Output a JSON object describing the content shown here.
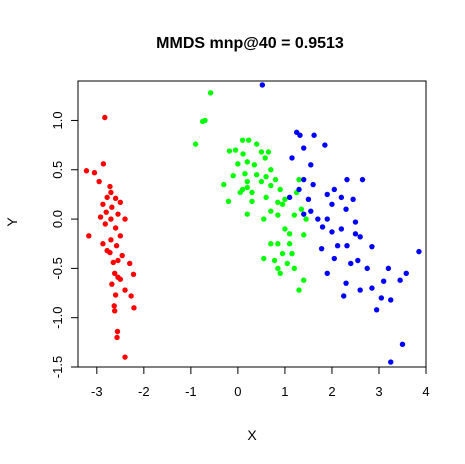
{
  "chart_data": {
    "type": "scatter",
    "title": "MMDS mnp@40 = 0.9513",
    "xlabel": "X",
    "ylabel": "Y",
    "xlim": [
      -3.4,
      4.0
    ],
    "ylim": [
      -1.5,
      1.4
    ],
    "x_ticks": [
      -3,
      -2,
      -1,
      0,
      1,
      2,
      3,
      4
    ],
    "y_ticks": [
      -1.5,
      -1.0,
      -0.5,
      0.0,
      0.5,
      1.0
    ],
    "x_tick_labels": [
      "-3",
      "-2",
      "-1",
      "0",
      "1",
      "2",
      "3",
      "4"
    ],
    "y_tick_labels": [
      "-1.5",
      "-1.0",
      "-0.5",
      "0.0",
      "0.5",
      "1.0"
    ],
    "grid": false,
    "series": [
      {
        "color": "#ff0000",
        "points": [
          [
            -2.83,
            1.03
          ],
          [
            -3.22,
            0.49
          ],
          [
            -3.05,
            0.47
          ],
          [
            -2.86,
            0.56
          ],
          [
            -2.95,
            0.38
          ],
          [
            -2.72,
            0.33
          ],
          [
            -2.7,
            0.27
          ],
          [
            -2.78,
            0.22
          ],
          [
            -2.6,
            0.21
          ],
          [
            -2.87,
            0.15
          ],
          [
            -2.68,
            0.12
          ],
          [
            -2.5,
            0.17
          ],
          [
            -2.8,
            0.07
          ],
          [
            -2.55,
            0.05
          ],
          [
            -2.92,
            0.02
          ],
          [
            -2.7,
            0.0
          ],
          [
            -2.4,
            0.0
          ],
          [
            -2.82,
            -0.05
          ],
          [
            -2.6,
            -0.09
          ],
          [
            -3.17,
            -0.17
          ],
          [
            -2.5,
            -0.17
          ],
          [
            -2.7,
            -0.21
          ],
          [
            -2.87,
            -0.25
          ],
          [
            -2.58,
            -0.27
          ],
          [
            -2.78,
            -0.32
          ],
          [
            -2.72,
            -0.34
          ],
          [
            -2.46,
            -0.37
          ],
          [
            -2.55,
            -0.42
          ],
          [
            -2.65,
            -0.44
          ],
          [
            -2.3,
            -0.45
          ],
          [
            -2.62,
            -0.55
          ],
          [
            -2.22,
            -0.56
          ],
          [
            -2.55,
            -0.59
          ],
          [
            -2.5,
            -0.61
          ],
          [
            -2.68,
            -0.66
          ],
          [
            -2.4,
            -0.72
          ],
          [
            -2.6,
            -0.77
          ],
          [
            -2.27,
            -0.78
          ],
          [
            -2.63,
            -0.88
          ],
          [
            -2.62,
            -0.93
          ],
          [
            -2.21,
            -0.9
          ],
          [
            -2.56,
            -1.14
          ],
          [
            -2.57,
            -1.2
          ],
          [
            -2.4,
            -1.4
          ]
        ]
      },
      {
        "color": "#00ff00",
        "points": [
          [
            -0.58,
            1.28
          ],
          [
            -0.7,
            1.0
          ],
          [
            -0.75,
            0.99
          ],
          [
            -0.9,
            0.76
          ],
          [
            0.1,
            0.8
          ],
          [
            0.23,
            0.8
          ],
          [
            0.4,
            0.76
          ],
          [
            -0.18,
            0.69
          ],
          [
            -0.05,
            0.7
          ],
          [
            0.11,
            0.66
          ],
          [
            0.5,
            0.68
          ],
          [
            0.65,
            0.68
          ],
          [
            0.58,
            0.62
          ],
          [
            0.0,
            0.56
          ],
          [
            0.2,
            0.58
          ],
          [
            0.35,
            0.55
          ],
          [
            0.7,
            0.5
          ],
          [
            -0.1,
            0.44
          ],
          [
            0.15,
            0.46
          ],
          [
            0.4,
            0.45
          ],
          [
            0.6,
            0.43
          ],
          [
            0.8,
            0.4
          ],
          [
            0.2,
            0.38
          ],
          [
            0.5,
            0.38
          ],
          [
            -0.3,
            0.35
          ],
          [
            0.7,
            0.34
          ],
          [
            1.3,
            0.4
          ],
          [
            0.1,
            0.3
          ],
          [
            0.2,
            0.32
          ],
          [
            0.9,
            0.3
          ],
          [
            0.05,
            0.27
          ],
          [
            0.3,
            0.27
          ],
          [
            1.25,
            0.27
          ],
          [
            0.6,
            0.22
          ],
          [
            1.0,
            0.2
          ],
          [
            -0.2,
            0.18
          ],
          [
            0.3,
            0.18
          ],
          [
            0.85,
            0.17
          ],
          [
            0.95,
            0.15
          ],
          [
            1.35,
            0.1
          ],
          [
            0.7,
            0.08
          ],
          [
            0.2,
            0.05
          ],
          [
            0.85,
            0.04
          ],
          [
            1.2,
            0.04
          ],
          [
            0.55,
            0.0
          ],
          [
            1.45,
            0.0
          ],
          [
            1.0,
            -0.1
          ],
          [
            1.1,
            -0.15
          ],
          [
            1.4,
            -0.16
          ],
          [
            0.7,
            -0.25
          ],
          [
            0.85,
            -0.25
          ],
          [
            1.1,
            -0.25
          ],
          [
            0.95,
            -0.35
          ],
          [
            1.15,
            -0.35
          ],
          [
            0.55,
            -0.4
          ],
          [
            0.78,
            -0.42
          ],
          [
            1.05,
            -0.45
          ],
          [
            0.85,
            -0.5
          ],
          [
            1.2,
            -0.5
          ],
          [
            0.9,
            -0.55
          ],
          [
            1.4,
            -0.62
          ],
          [
            1.3,
            -0.72
          ]
        ]
      },
      {
        "color": "#0000ff",
        "points": [
          [
            0.52,
            1.36
          ],
          [
            1.25,
            0.88
          ],
          [
            1.32,
            0.85
          ],
          [
            1.62,
            0.85
          ],
          [
            1.85,
            0.75
          ],
          [
            1.4,
            0.72
          ],
          [
            1.15,
            0.62
          ],
          [
            1.55,
            0.55
          ],
          [
            1.4,
            0.4
          ],
          [
            1.6,
            0.35
          ],
          [
            2.32,
            0.4
          ],
          [
            2.65,
            0.4
          ],
          [
            1.3,
            0.3
          ],
          [
            2.05,
            0.3
          ],
          [
            1.9,
            0.25
          ],
          [
            2.2,
            0.22
          ],
          [
            1.1,
            0.22
          ],
          [
            1.5,
            0.2
          ],
          [
            2.45,
            0.2
          ],
          [
            2.0,
            0.15
          ],
          [
            2.3,
            0.1
          ],
          [
            1.55,
            0.08
          ],
          [
            1.4,
            0.05
          ],
          [
            1.7,
            0.0
          ],
          [
            1.9,
            0.0
          ],
          [
            2.5,
            -0.03
          ],
          [
            1.8,
            -0.08
          ],
          [
            2.2,
            -0.1
          ],
          [
            2.0,
            -0.13
          ],
          [
            2.5,
            -0.15
          ],
          [
            2.6,
            -0.18
          ],
          [
            2.12,
            -0.27
          ],
          [
            2.32,
            -0.27
          ],
          [
            1.78,
            -0.3
          ],
          [
            2.85,
            -0.28
          ],
          [
            3.85,
            -0.33
          ],
          [
            2.05,
            -0.4
          ],
          [
            2.55,
            -0.42
          ],
          [
            2.4,
            -0.45
          ],
          [
            3.2,
            -0.5
          ],
          [
            2.75,
            -0.5
          ],
          [
            1.9,
            -0.55
          ],
          [
            3.58,
            -0.55
          ],
          [
            2.3,
            -0.65
          ],
          [
            3.1,
            -0.63
          ],
          [
            2.85,
            -0.7
          ],
          [
            3.45,
            -0.62
          ],
          [
            2.6,
            -0.72
          ],
          [
            2.25,
            -0.78
          ],
          [
            3.05,
            -0.8
          ],
          [
            3.25,
            -0.82
          ],
          [
            2.95,
            -0.92
          ],
          [
            3.5,
            -1.27
          ],
          [
            3.25,
            -1.45
          ]
        ]
      }
    ]
  }
}
